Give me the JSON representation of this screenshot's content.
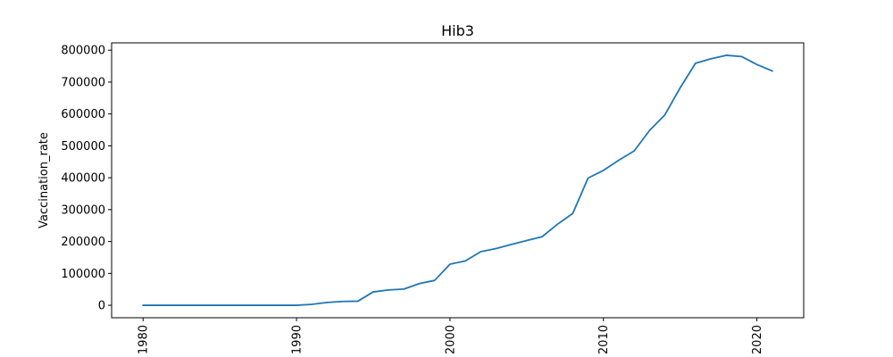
{
  "chart_data": {
    "type": "line",
    "title": "Hib3",
    "xlabel": "",
    "ylabel": "Vaccination_rate",
    "xlim": [
      1977.95,
      2023.05
    ],
    "ylim": [
      -39000,
      823000
    ],
    "x_ticks": [
      1980,
      1990,
      2000,
      2010,
      2020
    ],
    "y_ticks": [
      0,
      100000,
      200000,
      300000,
      400000,
      500000,
      600000,
      700000,
      800000
    ],
    "grid": false,
    "legend": "none",
    "line_color": "#1f77b4",
    "series": [
      {
        "x": [
          1980,
          1981,
          1982,
          1983,
          1984,
          1985,
          1986,
          1987,
          1988,
          1989,
          1990,
          1991,
          1992,
          1993,
          1994,
          1995,
          1996,
          1997,
          1998,
          1999,
          2000,
          2001,
          2002,
          2003,
          2004,
          2005,
          2006,
          2007,
          2008,
          2009,
          2010,
          2011,
          2012,
          2013,
          2014,
          2015,
          2016,
          2017,
          2018,
          2019,
          2020,
          2021
        ],
        "values": [
          0,
          0,
          0,
          0,
          0,
          0,
          0,
          0,
          0,
          0,
          0,
          3000,
          9000,
          12000,
          13000,
          42000,
          48000,
          51000,
          68000,
          78000,
          129000,
          139000,
          168000,
          178000,
          191000,
          203000,
          215000,
          254000,
          288000,
          399000,
          423000,
          455000,
          484000,
          548000,
          597000,
          682000,
          759000,
          773000,
          784000,
          780000,
          755000,
          735000
        ]
      }
    ]
  }
}
